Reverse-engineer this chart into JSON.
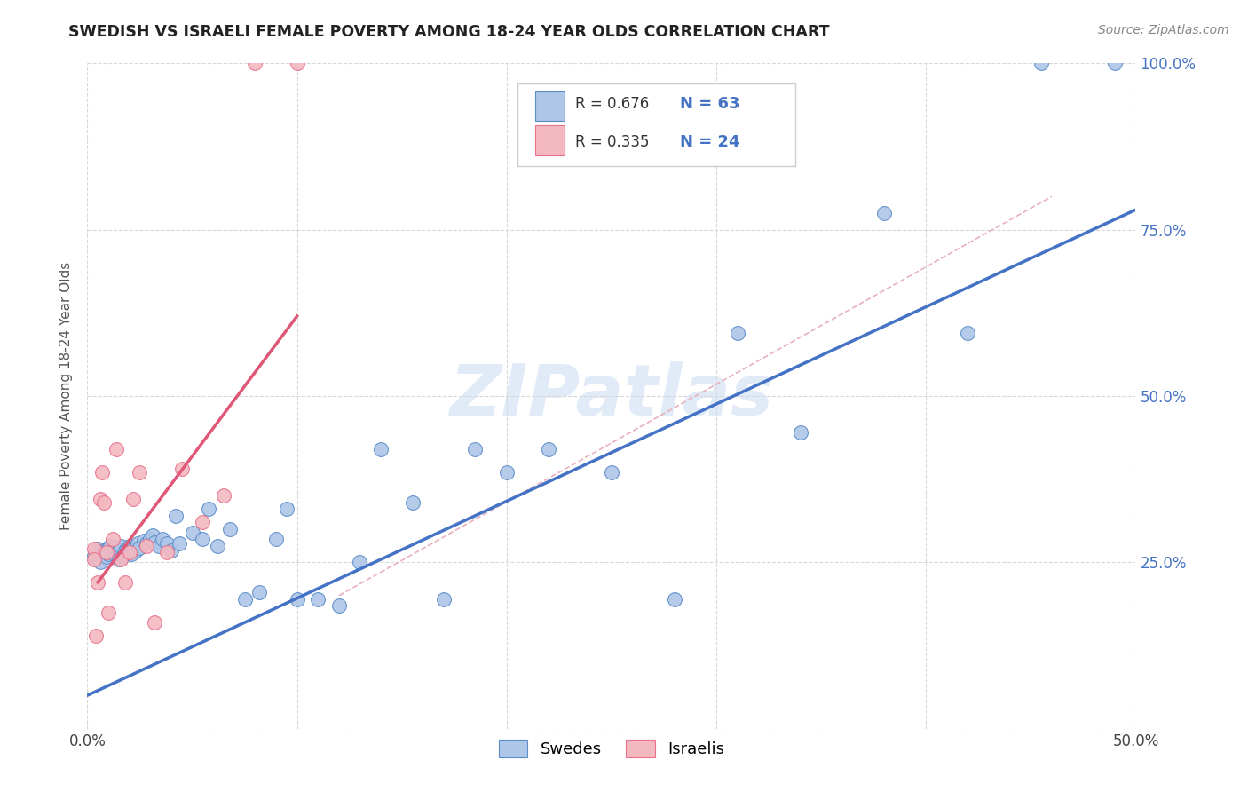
{
  "title": "SWEDISH VS ISRAELI FEMALE POVERTY AMONG 18-24 YEAR OLDS CORRELATION CHART",
  "source": "Source: ZipAtlas.com",
  "ylabel": "Female Poverty Among 18-24 Year Olds",
  "xlim": [
    0.0,
    0.5
  ],
  "ylim": [
    0.0,
    1.0
  ],
  "background_color": "#ffffff",
  "grid_color": "#d8d8d8",
  "watermark": "ZIPatlas",
  "swede_color": "#aec6e8",
  "israeli_color": "#f4b8c1",
  "swede_edge_color": "#5b8dc8",
  "israeli_edge_color": "#e8728a",
  "swede_line_color": "#4472c4",
  "israeli_line_color": "#e05878",
  "diagonal_color": "#e8b0bc",
  "legend_R_swede": "R = 0.676",
  "legend_N_swede": "N = 63",
  "legend_R_israeli": "R = 0.335",
  "legend_N_israeli": "N = 24",
  "swede_line": [
    [
      0.0,
      0.05
    ],
    [
      0.5,
      0.78
    ]
  ],
  "israeli_line": [
    [
      0.005,
      0.22
    ],
    [
      0.1,
      0.62
    ]
  ],
  "diagonal_line": [
    [
      0.12,
      0.2
    ],
    [
      0.46,
      0.8
    ]
  ],
  "swedes_x": [
    0.003,
    0.005,
    0.005,
    0.006,
    0.007,
    0.008,
    0.009,
    0.01,
    0.01,
    0.011,
    0.012,
    0.013,
    0.014,
    0.015,
    0.015,
    0.016,
    0.017,
    0.018,
    0.019,
    0.02,
    0.021,
    0.022,
    0.023,
    0.024,
    0.025,
    0.027,
    0.028,
    0.03,
    0.031,
    0.032,
    0.034,
    0.036,
    0.038,
    0.04,
    0.042,
    0.044,
    0.05,
    0.055,
    0.058,
    0.062,
    0.068,
    0.075,
    0.082,
    0.09,
    0.095,
    0.1,
    0.11,
    0.12,
    0.13,
    0.14,
    0.155,
    0.17,
    0.185,
    0.2,
    0.22,
    0.25,
    0.28,
    0.31,
    0.34,
    0.38,
    0.42,
    0.455,
    0.49
  ],
  "swedes_y": [
    0.26,
    0.255,
    0.27,
    0.25,
    0.265,
    0.268,
    0.258,
    0.272,
    0.262,
    0.274,
    0.265,
    0.27,
    0.26,
    0.268,
    0.255,
    0.275,
    0.26,
    0.268,
    0.27,
    0.275,
    0.262,
    0.27,
    0.268,
    0.278,
    0.272,
    0.282,
    0.278,
    0.285,
    0.29,
    0.28,
    0.275,
    0.285,
    0.278,
    0.268,
    0.32,
    0.278,
    0.295,
    0.285,
    0.33,
    0.275,
    0.3,
    0.195,
    0.205,
    0.285,
    0.33,
    0.195,
    0.195,
    0.185,
    0.25,
    0.42,
    0.34,
    0.195,
    0.42,
    0.385,
    0.42,
    0.385,
    0.195,
    0.595,
    0.445,
    0.775,
    0.595,
    1.0,
    1.0
  ],
  "israelis_x": [
    0.003,
    0.003,
    0.004,
    0.005,
    0.006,
    0.007,
    0.008,
    0.009,
    0.01,
    0.012,
    0.014,
    0.016,
    0.018,
    0.02,
    0.022,
    0.025,
    0.028,
    0.032,
    0.038,
    0.045,
    0.055,
    0.065,
    0.08,
    0.1
  ],
  "israelis_y": [
    0.27,
    0.255,
    0.14,
    0.22,
    0.345,
    0.385,
    0.34,
    0.265,
    0.175,
    0.285,
    0.42,
    0.255,
    0.22,
    0.265,
    0.345,
    0.385,
    0.275,
    0.16,
    0.265,
    0.39,
    0.31,
    0.35,
    1.0,
    1.0
  ]
}
